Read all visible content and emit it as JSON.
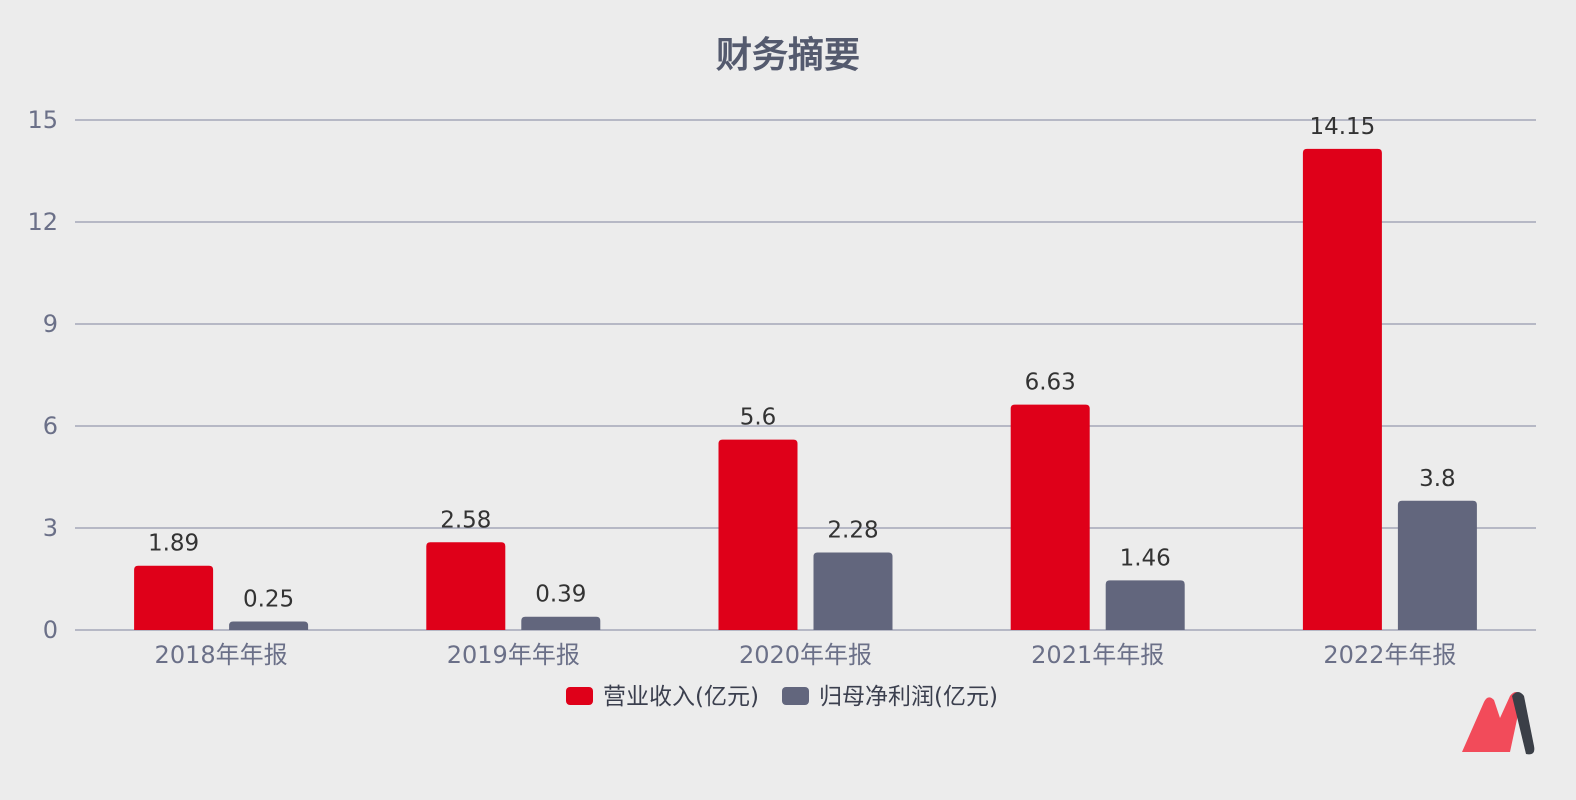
{
  "chart_data": {
    "type": "bar",
    "title": "财务摘要",
    "categories": [
      "2018年年报",
      "2019年年报",
      "2020年年报",
      "2021年年报",
      "2022年年报"
    ],
    "series": [
      {
        "name": "营业收入(亿元)",
        "values": [
          1.89,
          2.58,
          5.6,
          6.63,
          14.15
        ],
        "color": "#df0019"
      },
      {
        "name": "归母净利润(亿元)",
        "values": [
          0.25,
          0.39,
          2.28,
          1.46,
          3.8
        ],
        "color": "#62667d"
      }
    ],
    "ylim": [
      0,
      15
    ],
    "yticks": [
      0,
      3,
      6,
      9,
      12,
      15
    ],
    "grid": true,
    "legend": "bottom-center"
  },
  "logo": {
    "name": "logo-icon",
    "colors": [
      "#f24b5a",
      "#3b3f47"
    ]
  }
}
